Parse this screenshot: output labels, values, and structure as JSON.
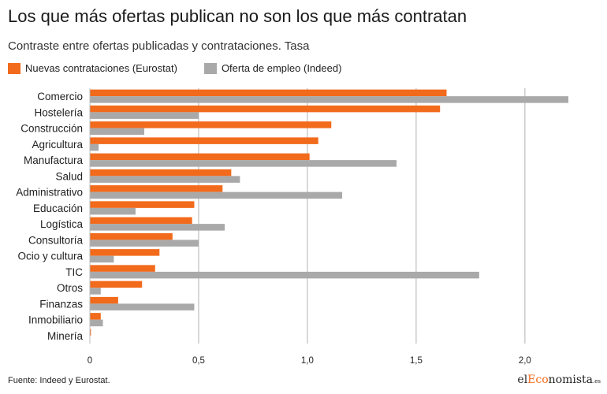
{
  "header": {
    "title": "Los que más ofertas publican no son los que más contratan",
    "subtitle": "Contraste entre ofertas publicadas y contrataciones. Tasa"
  },
  "footer": {
    "source": "Fuente: Indeed y Eurostat.",
    "brand_prefix": "el",
    "brand_accent": "Eco",
    "brand_rest": "nomista",
    "brand_suffix": ".es"
  },
  "colors": {
    "series_orange": "#f26a1b",
    "series_gray": "#a9a9a9",
    "grid": "#cccccc"
  },
  "chart_data": {
    "type": "bar",
    "orientation": "horizontal",
    "categories": [
      "Comercio",
      "Hostelería",
      "Construcción",
      "Agricultura",
      "Manufactura",
      "Salud",
      "Administrativo",
      "Educación",
      "Logística",
      "Consultoría",
      "Ocio y cultura",
      "TIC",
      "Otros",
      "Finanzas",
      "Inmobiliario",
      "Minería"
    ],
    "series": [
      {
        "name": "Nuevas contrataciones (Eurostat)",
        "color": "#f26a1b",
        "values": [
          1.64,
          1.61,
          1.11,
          1.05,
          1.01,
          0.65,
          0.61,
          0.48,
          0.47,
          0.38,
          0.32,
          0.3,
          0.24,
          0.13,
          0.05,
          0.005
        ]
      },
      {
        "name": "Oferta de empleo (Indeed)",
        "color": "#a9a9a9",
        "values": [
          2.2,
          0.5,
          0.25,
          0.04,
          1.41,
          0.69,
          1.16,
          0.21,
          0.62,
          0.5,
          0.11,
          1.79,
          0.05,
          0.48,
          0.06,
          0.0
        ]
      }
    ],
    "xlim": [
      0,
      2.2
    ],
    "xticks": [
      0,
      0.5,
      1.0,
      1.5,
      2.0
    ],
    "xtick_labels": [
      "0",
      "0,5",
      "1,0",
      "1,5",
      "2,0"
    ],
    "grid": true,
    "legend_position": "top-left"
  }
}
